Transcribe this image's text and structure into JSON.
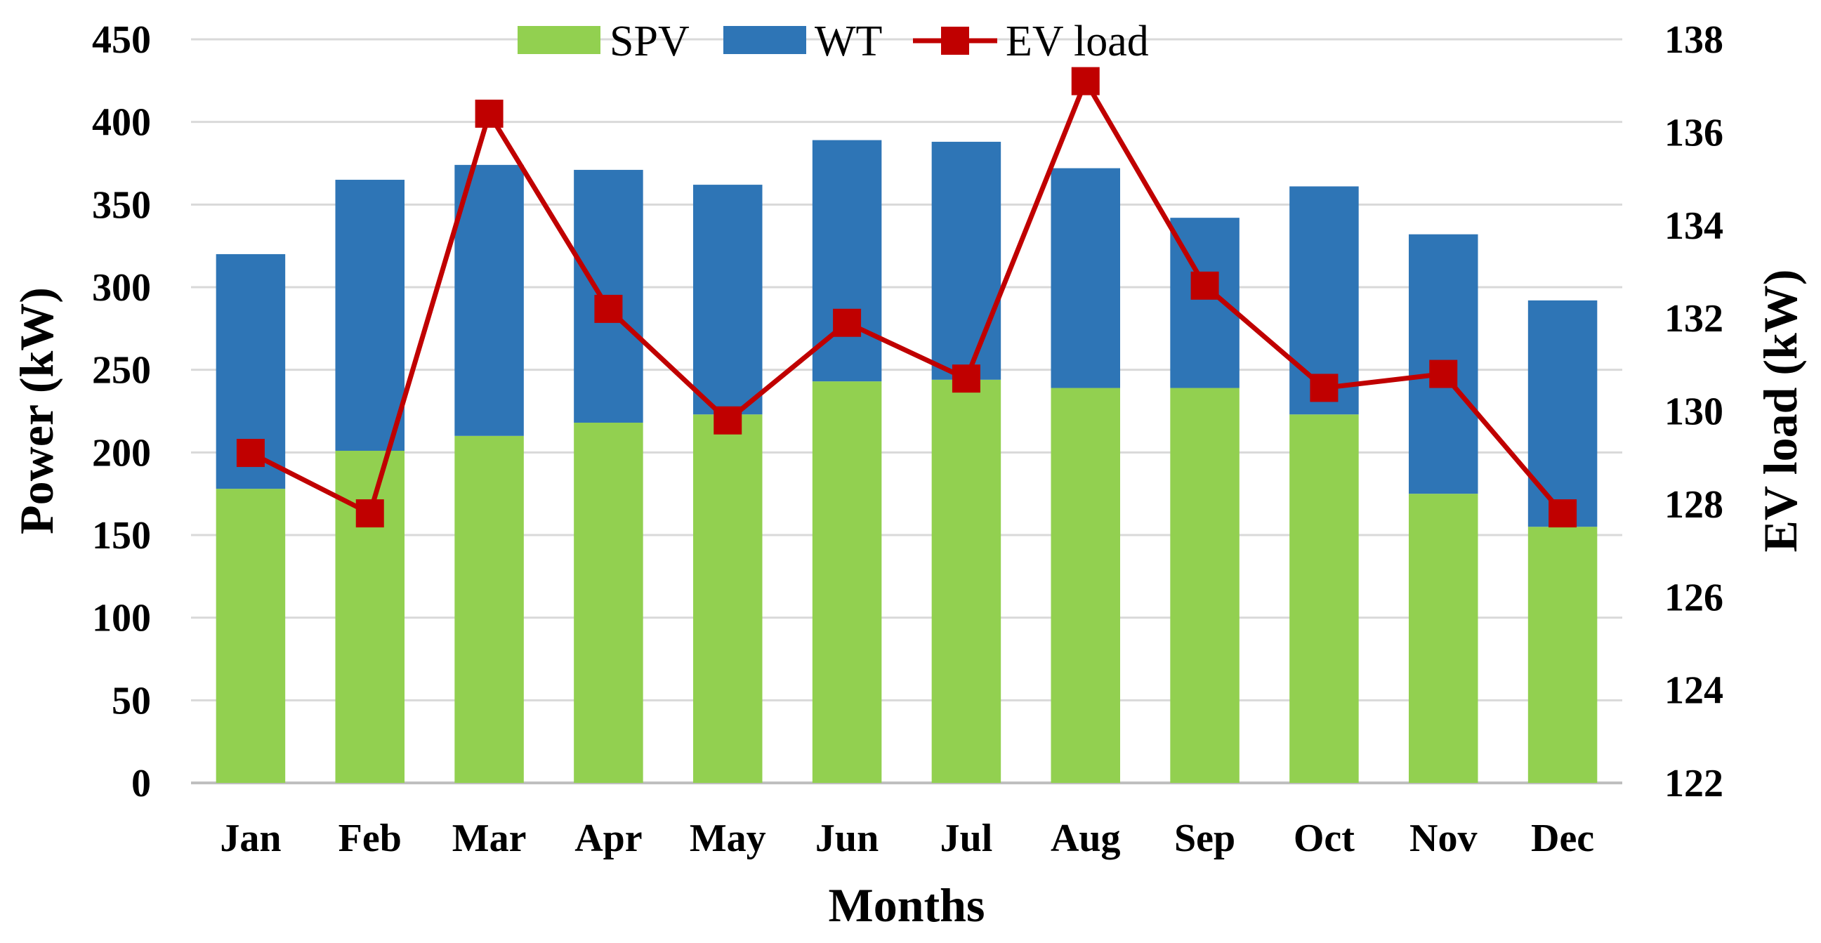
{
  "chart_data": {
    "type": "bar+line",
    "title": "",
    "xlabel": "Months",
    "ylabel": "Power (kW)",
    "y2label": "EV load (kW)",
    "categories": [
      "Jan",
      "Feb",
      "Mar",
      "Apr",
      "May",
      "Jun",
      "Jul",
      "Aug",
      "Sep",
      "Oct",
      "Nov",
      "Dec"
    ],
    "ylim": [
      0,
      450
    ],
    "y_ticks": [
      "0",
      "50",
      "100",
      "150",
      "200",
      "250",
      "300",
      "350",
      "400",
      "450"
    ],
    "y2lim": [
      122,
      138
    ],
    "y2_ticks": [
      "122",
      "124",
      "126",
      "128",
      "130",
      "132",
      "134",
      "136",
      "138"
    ],
    "grid": true,
    "legend_position": "top-center",
    "series": [
      {
        "name": "SPV",
        "kind": "stacked-bar",
        "axis": "left",
        "color": "#92d050",
        "values": [
          178,
          201,
          210,
          218,
          223,
          243,
          244,
          239,
          239,
          223,
          175,
          155
        ]
      },
      {
        "name": "WT",
        "kind": "stacked-bar",
        "axis": "left",
        "color": "#2e75b6",
        "values": [
          142,
          164,
          164,
          153,
          139,
          146,
          144,
          133,
          103,
          138,
          157,
          137
        ]
      },
      {
        "name": "EV load",
        "kind": "line-marker",
        "axis": "right",
        "color": "#c00000",
        "values": [
          129.1,
          127.8,
          136.4,
          132.2,
          129.8,
          131.9,
          130.7,
          137.1,
          132.7,
          130.5,
          130.8,
          127.8
        ]
      }
    ]
  }
}
